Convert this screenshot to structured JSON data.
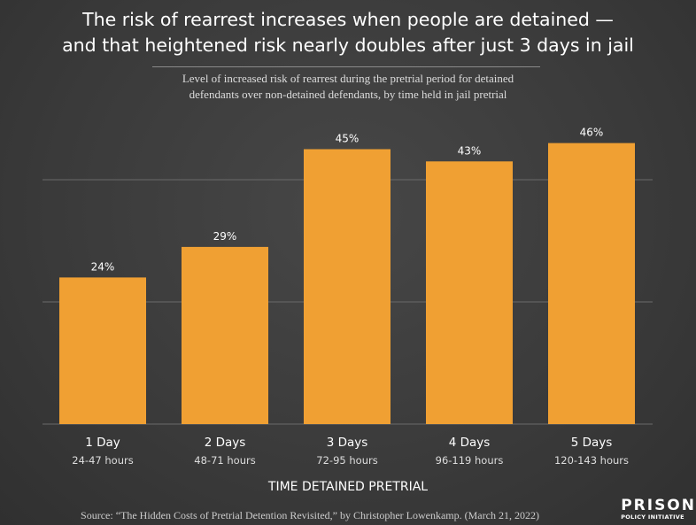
{
  "chart_data": {
    "type": "bar",
    "title": "The risk of rearrest increases when people are detained — and that heightened risk nearly doubles after just 3 days in jail",
    "title_lines": [
      "The risk of rearrest increases when people are detained —",
      "and that heightened risk nearly doubles after just 3 days in jail"
    ],
    "subtitle_lines": [
      "Level of increased risk of rearrest during the pretrial period for detained",
      "defendants over non-detained defendants, by time held in jail pretrial"
    ],
    "categories": [
      "1 Day",
      "2 Days",
      "3 Days",
      "4 Days",
      "5 Days"
    ],
    "sublabels": [
      "24-47 hours",
      "48-71 hours",
      "72-95 hours",
      "96-119 hours",
      "120-143 hours"
    ],
    "values": [
      24,
      29,
      45,
      43,
      46
    ],
    "data_labels": [
      "24%",
      "29%",
      "45%",
      "43%",
      "46%"
    ],
    "xlabel": "TIME DETAINED PRETRIAL",
    "ylabel": "",
    "ylim": [
      0,
      60
    ],
    "gridlines": [
      20,
      40
    ],
    "grid": true,
    "bar_color": "#f0a033",
    "source": "Source: “The Hidden Costs of Pretrial Detention Revisited,” by Christopher Lowenkamp. (March 21, 2022)"
  },
  "logo": {
    "line1": "PRISON",
    "line2": "POLICY INITIATIVE"
  }
}
